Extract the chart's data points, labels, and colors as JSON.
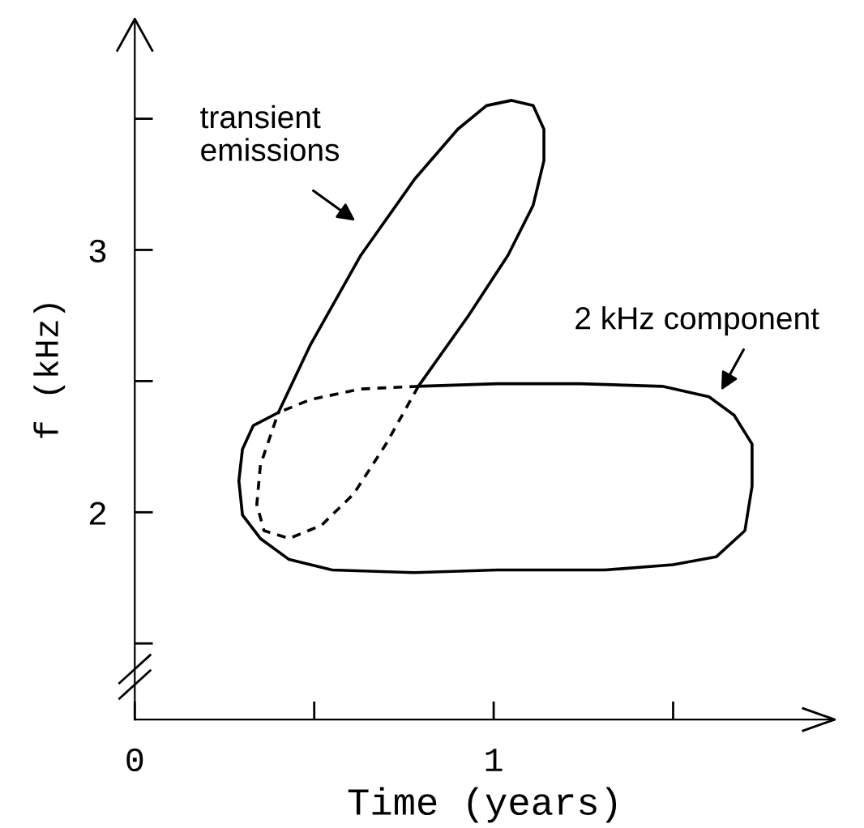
{
  "chart_data": {
    "type": "line",
    "xlabel": "Time (years)",
    "ylabel": "f (kHz)",
    "xlim": [
      0,
      1.95
    ],
    "ylim": [
      1.21,
      3.88
    ],
    "xticks": [
      0,
      {
        "value": 0.5,
        "label": null
      },
      1,
      {
        "value": 1.5,
        "label": null
      }
    ],
    "yticks": [
      {
        "value": 1.5,
        "label": null
      },
      2,
      {
        "value": 2.5,
        "label": null
      },
      3,
      {
        "value": 3.5,
        "label": null
      }
    ],
    "grid": false,
    "legend": false,
    "marker": "none",
    "series": [
      {
        "color": "#000000",
        "line_style": "solid",
        "x": [
          0.4,
          0.33,
          0.3,
          0.29,
          0.3,
          0.35,
          0.43,
          0.55,
          0.78,
          1.01,
          1.31,
          1.5,
          1.62,
          1.7,
          1.72,
          1.72,
          1.67,
          1.6,
          1.47,
          1.24,
          1.01,
          0.79
        ],
        "values": [
          2.38,
          2.33,
          2.24,
          2.12,
          1.99,
          1.9,
          1.82,
          1.78,
          1.77,
          1.78,
          1.78,
          1.8,
          1.83,
          1.93,
          2.1,
          2.26,
          2.37,
          2.44,
          2.48,
          2.49,
          2.49,
          2.48
        ]
      },
      {
        "color": "#000000",
        "line_style": "dashed",
        "x": [
          0.79,
          0.63,
          0.49,
          0.4
        ],
        "values": [
          2.48,
          2.47,
          2.43,
          2.38
        ]
      },
      {
        "color": "#000000",
        "line_style": "solid",
        "x": [
          0.4,
          0.49,
          0.63,
          0.78,
          0.9,
          0.98,
          1.05,
          1.11,
          1.14,
          1.14,
          1.11,
          1.04,
          0.93,
          0.79
        ],
        "values": [
          2.38,
          2.64,
          2.98,
          3.27,
          3.46,
          3.55,
          3.57,
          3.55,
          3.46,
          3.34,
          3.17,
          2.98,
          2.75,
          2.48
        ]
      },
      {
        "color": "#000000",
        "line_style": "dashed",
        "x": [
          0.79,
          0.7,
          0.61,
          0.52,
          0.43,
          0.36,
          0.34,
          0.35,
          0.4
        ],
        "values": [
          2.48,
          2.26,
          2.07,
          1.95,
          1.9,
          1.93,
          2.03,
          2.18,
          2.38
        ]
      }
    ],
    "annotations": [
      "transient\nemissions",
      "2 kHz component"
    ]
  }
}
